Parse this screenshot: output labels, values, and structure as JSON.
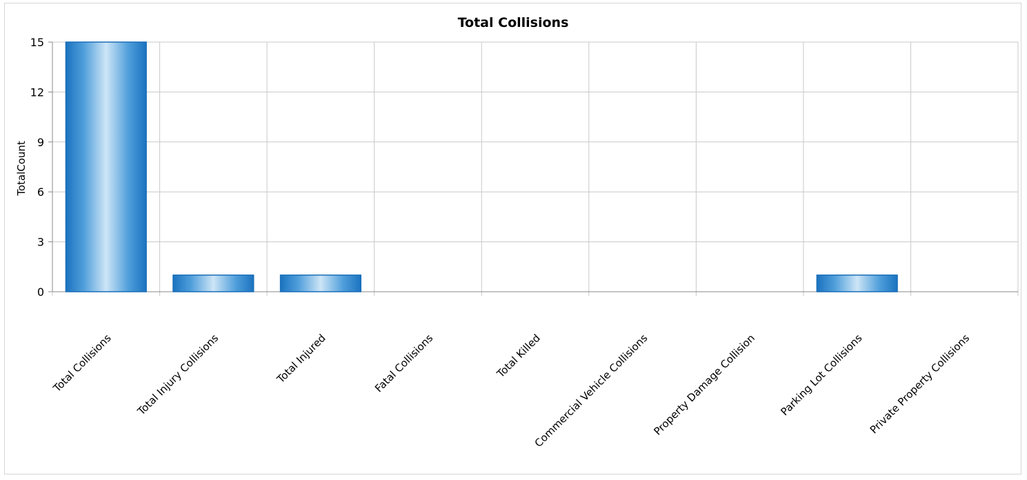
{
  "chart_data": {
    "type": "bar",
    "title": "Total Collisions",
    "xlabel": "",
    "ylabel": "TotalCount",
    "categories": [
      "Total Collisions",
      "Total Injury Collisions",
      "Total Injured",
      "Fatal Collisions",
      "Total Killed",
      "Commercial Vehicle Collisions",
      "Property Damage Collision",
      "Parking Lot Collisions",
      "Private Property Collisions"
    ],
    "values": [
      15,
      1,
      1,
      0,
      0,
      0,
      0,
      1,
      0
    ],
    "ylim": [
      0,
      15
    ],
    "yticks": [
      0,
      3,
      6,
      9,
      12,
      15
    ],
    "grid": true,
    "legend": "none",
    "colors": {
      "bar_edge": "#1a6fb8",
      "bar_dark": "#2e86cc",
      "bar_light": "#c7e1f5",
      "grid": "#c8c8c8",
      "axis": "#888888",
      "text": "#000000"
    }
  }
}
